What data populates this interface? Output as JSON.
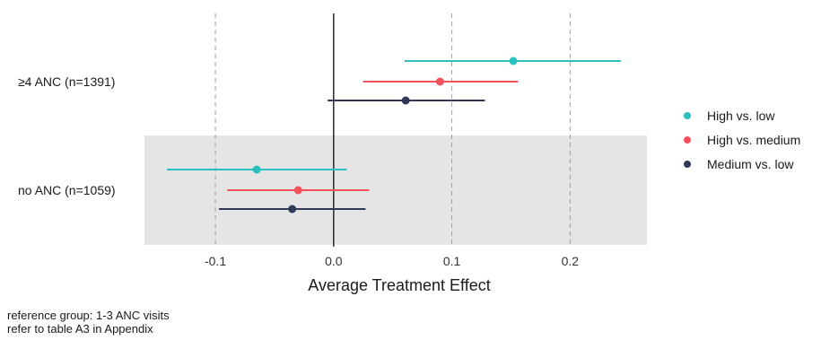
{
  "chart_data": {
    "type": "forest",
    "xlabel": "Average Treatment Effect",
    "xlim": [
      -0.16,
      0.265
    ],
    "xticks": [
      -0.1,
      0.0,
      0.1,
      0.2
    ],
    "xtick_labels": [
      "-0.1",
      "0.0",
      "0.1",
      "0.2"
    ],
    "reference_line_x": 0.0,
    "grid": "dashed vertical lines at major ticks",
    "legend_position": "right",
    "categories": [
      "≥4 ANC (n=1391)",
      "no ANC (n=1059)"
    ],
    "shaded_category": "no ANC (n=1059)",
    "series": [
      {
        "name": "High vs. low",
        "color": "#2bbfbf",
        "points": [
          {
            "category": "≥4 ANC (n=1391)",
            "estimate": 0.152,
            "lower": 0.06,
            "upper": 0.243
          },
          {
            "category": "no ANC (n=1059)",
            "estimate": -0.065,
            "lower": -0.141,
            "upper": 0.011
          }
        ]
      },
      {
        "name": "High vs. medium",
        "color": "#f5515c",
        "points": [
          {
            "category": "≥4 ANC (n=1391)",
            "estimate": 0.09,
            "lower": 0.025,
            "upper": 0.156
          },
          {
            "category": "no ANC (n=1059)",
            "estimate": -0.03,
            "lower": -0.09,
            "upper": 0.03
          }
        ]
      },
      {
        "name": "Medium vs. low",
        "color": "#2e3a56",
        "points": [
          {
            "category": "≥4 ANC (n=1391)",
            "estimate": 0.061,
            "lower": -0.005,
            "upper": 0.128
          },
          {
            "category": "no ANC (n=1059)",
            "estimate": -0.035,
            "lower": -0.097,
            "upper": 0.027
          }
        ]
      }
    ]
  },
  "caption": {
    "line1": "reference group: 1-3 ANC visits",
    "line2": "refer to table A3 in Appendix"
  }
}
